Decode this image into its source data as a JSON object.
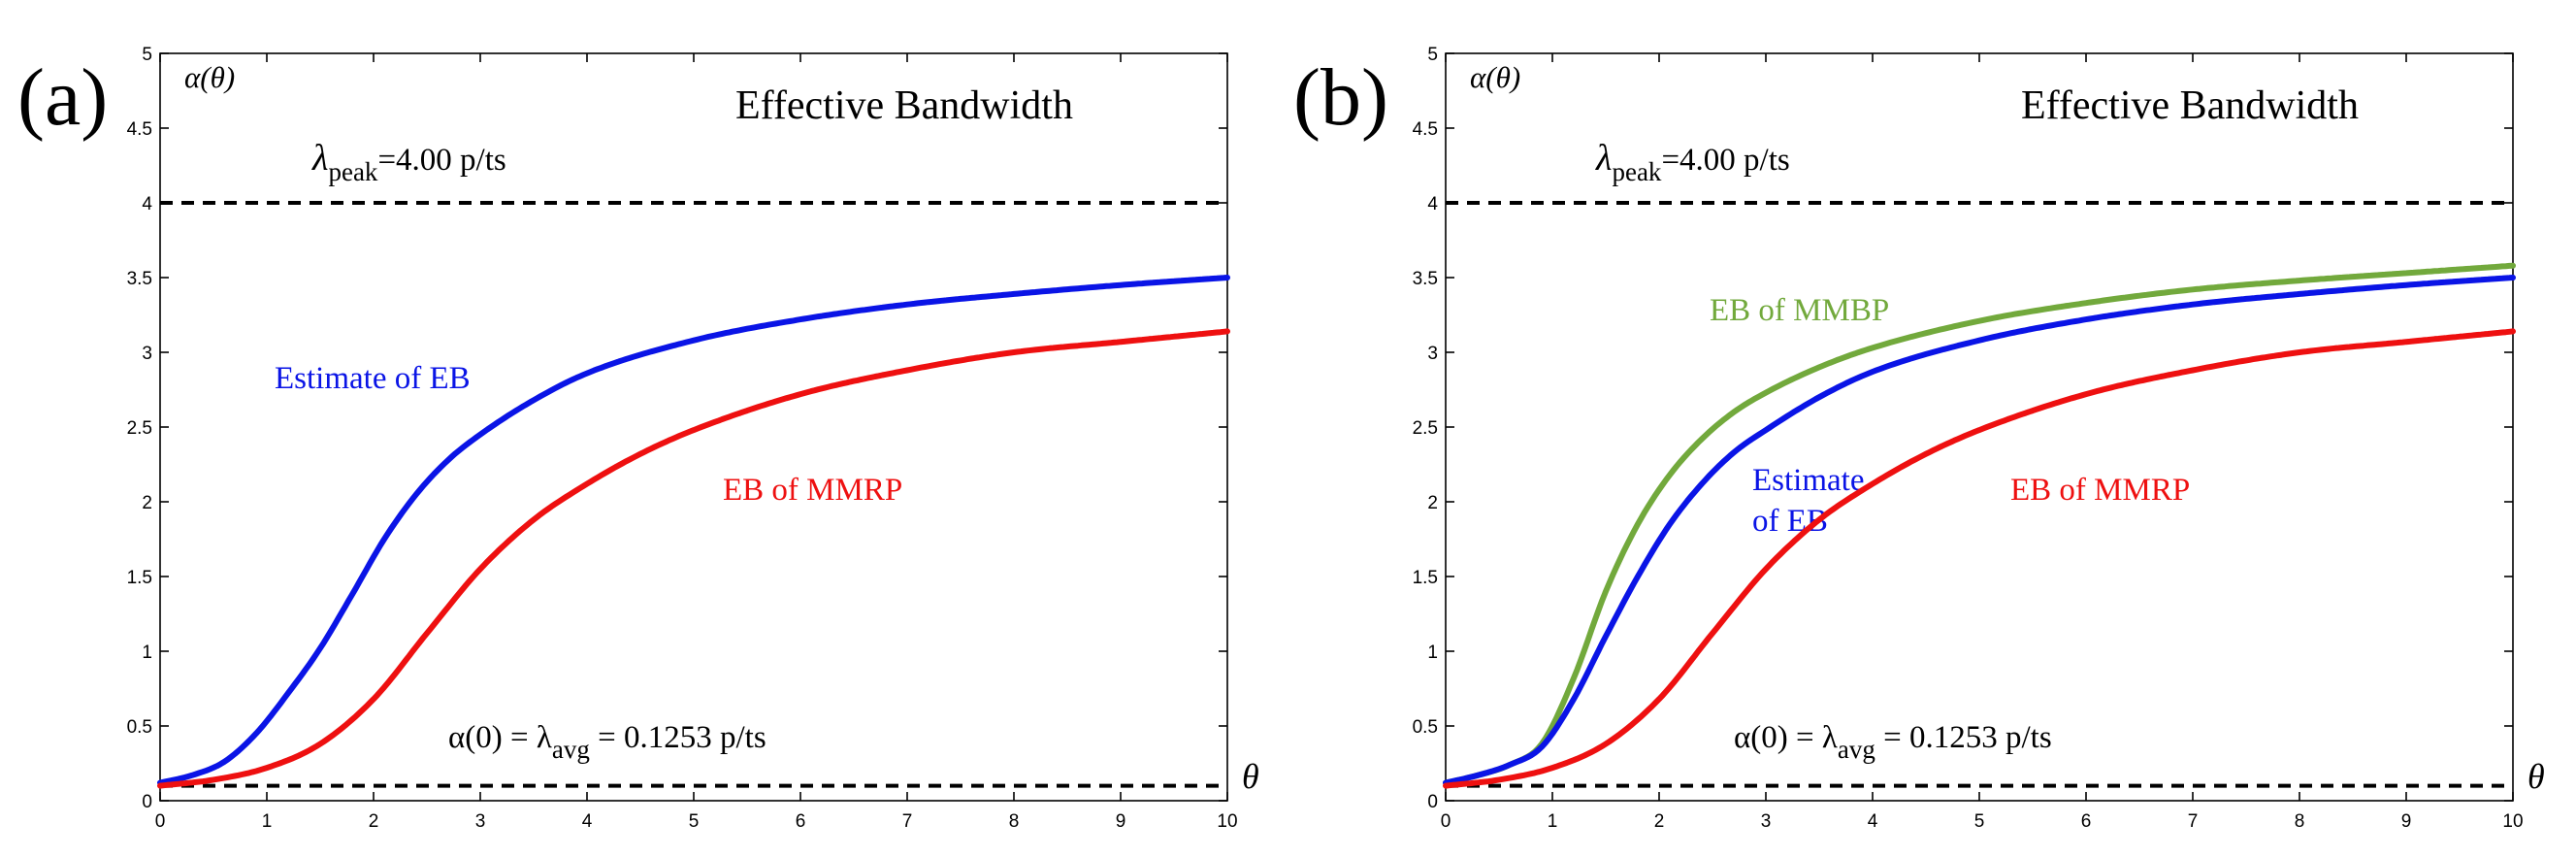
{
  "chart_data": [
    {
      "type": "line",
      "panel_label": "(a)",
      "title": "Effective Bandwidth",
      "xlabel": "θ",
      "ylabel": "α(θ)",
      "xlim": [
        0,
        10
      ],
      "ylim": [
        0,
        5
      ],
      "xticks": [
        0,
        1,
        2,
        3,
        4,
        5,
        6,
        7,
        8,
        9,
        10
      ],
      "yticks": [
        0,
        0.5,
        1,
        1.5,
        2,
        2.5,
        3,
        3.5,
        4,
        4.5,
        5
      ],
      "xtick_labels": [
        "0",
        "1",
        "2",
        "3",
        "4",
        "5",
        "6",
        "7",
        "8",
        "9",
        "10"
      ],
      "ytick_labels": [
        "0",
        "0.5",
        "1",
        "1.5",
        "2",
        "2.5",
        "3",
        "3.5",
        "4",
        "4.5",
        "5"
      ],
      "reference_lines": [
        {
          "y": 4.0,
          "label_symbol": "λ",
          "label_sub": "peak",
          "label_rest": "=4.00 p/ts"
        },
        {
          "y": 0.1,
          "label_prefix": "α(0) = λ",
          "label_sub": "avg",
          "label_rest": " = 0.1253 p/ts"
        }
      ],
      "series": [
        {
          "name": "Estimate of  EB",
          "color": "#0a14e6",
          "x": [
            0,
            0.3,
            0.6,
            0.9,
            1.2,
            1.5,
            1.8,
            2.1,
            2.4,
            2.7,
            3,
            3.5,
            4,
            5,
            6,
            7,
            8,
            9,
            10
          ],
          "y": [
            0.12,
            0.17,
            0.26,
            0.45,
            0.72,
            1.02,
            1.38,
            1.75,
            2.05,
            2.28,
            2.45,
            2.68,
            2.86,
            3.08,
            3.22,
            3.32,
            3.39,
            3.45,
            3.5
          ]
        },
        {
          "name": "EB of MMRP",
          "color": "#ee1010",
          "x": [
            0,
            0.5,
            1,
            1.5,
            2,
            2.5,
            3,
            3.5,
            4,
            4.5,
            5,
            6,
            7,
            8,
            9,
            10
          ],
          "y": [
            0.1,
            0.14,
            0.22,
            0.38,
            0.68,
            1.12,
            1.55,
            1.88,
            2.12,
            2.32,
            2.48,
            2.72,
            2.88,
            3.0,
            3.07,
            3.14
          ]
        }
      ]
    },
    {
      "type": "line",
      "panel_label": "(b)",
      "title": "Effective Bandwidth",
      "xlabel": "θ",
      "ylabel": "α(θ)",
      "xlim": [
        0,
        10
      ],
      "ylim": [
        0,
        5
      ],
      "xticks": [
        0,
        1,
        2,
        3,
        4,
        5,
        6,
        7,
        8,
        9,
        10
      ],
      "yticks": [
        0,
        0.5,
        1,
        1.5,
        2,
        2.5,
        3,
        3.5,
        4,
        4.5,
        5
      ],
      "xtick_labels": [
        "0",
        "1",
        "2",
        "3",
        "4",
        "5",
        "6",
        "7",
        "8",
        "9",
        "10"
      ],
      "ytick_labels": [
        "0",
        "0.5",
        "1",
        "1.5",
        "2",
        "2.5",
        "3",
        "3.5",
        "4",
        "4.5",
        "5"
      ],
      "reference_lines": [
        {
          "y": 4.0,
          "label_symbol": "λ",
          "label_sub": "peak",
          "label_rest": "=4.00 p/ts"
        },
        {
          "y": 0.1,
          "label_prefix": "α(0) = λ",
          "label_sub": "avg",
          "label_rest": " = 0.1253 p/ts"
        }
      ],
      "series": [
        {
          "name": "EB of MMBP",
          "color": "#72a93c",
          "x": [
            0,
            0.3,
            0.6,
            0.9,
            1.2,
            1.5,
            1.8,
            2.1,
            2.4,
            2.7,
            3,
            3.5,
            4,
            5,
            6,
            7,
            8,
            9,
            10
          ],
          "y": [
            0.12,
            0.17,
            0.24,
            0.38,
            0.82,
            1.4,
            1.85,
            2.18,
            2.42,
            2.6,
            2.73,
            2.9,
            3.03,
            3.21,
            3.33,
            3.42,
            3.48,
            3.53,
            3.58
          ]
        },
        {
          "name": "Estimate of  EB",
          "label_lines": [
            "Estimate",
            "of  EB"
          ],
          "color": "#0a14e6",
          "x": [
            0,
            0.3,
            0.6,
            0.9,
            1.2,
            1.5,
            1.8,
            2.1,
            2.4,
            2.7,
            3,
            3.5,
            4,
            5,
            6,
            7,
            8,
            9,
            10
          ],
          "y": [
            0.12,
            0.17,
            0.24,
            0.36,
            0.68,
            1.1,
            1.5,
            1.85,
            2.12,
            2.33,
            2.48,
            2.7,
            2.87,
            3.08,
            3.22,
            3.32,
            3.39,
            3.45,
            3.5
          ]
        },
        {
          "name": "EB of MMRP",
          "color": "#ee1010",
          "x": [
            0,
            0.5,
            1,
            1.5,
            2,
            2.5,
            3,
            3.5,
            4,
            4.5,
            5,
            6,
            7,
            8,
            9,
            10
          ],
          "y": [
            0.1,
            0.14,
            0.22,
            0.38,
            0.68,
            1.12,
            1.55,
            1.88,
            2.12,
            2.32,
            2.48,
            2.72,
            2.88,
            3.0,
            3.07,
            3.14
          ]
        }
      ]
    }
  ]
}
